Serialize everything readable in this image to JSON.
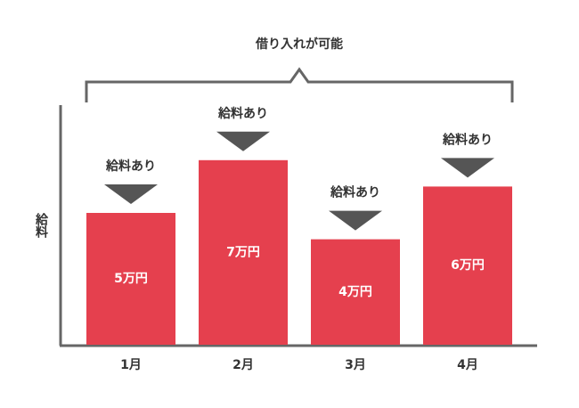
{
  "chart_data": {
    "type": "bar",
    "title": "借り入れが可能",
    "y_label": "給料",
    "categories": [
      "1月",
      "2月",
      "3月",
      "4月"
    ],
    "values": [
      5,
      7,
      4,
      6
    ],
    "value_labels": [
      "5万円",
      "7万円",
      "4万円",
      "6万円"
    ],
    "bar_annotations": [
      "給料あり",
      "給料あり",
      "給料あり",
      "給料あり"
    ],
    "color": "#e5404e",
    "marker_color": "#555555"
  }
}
